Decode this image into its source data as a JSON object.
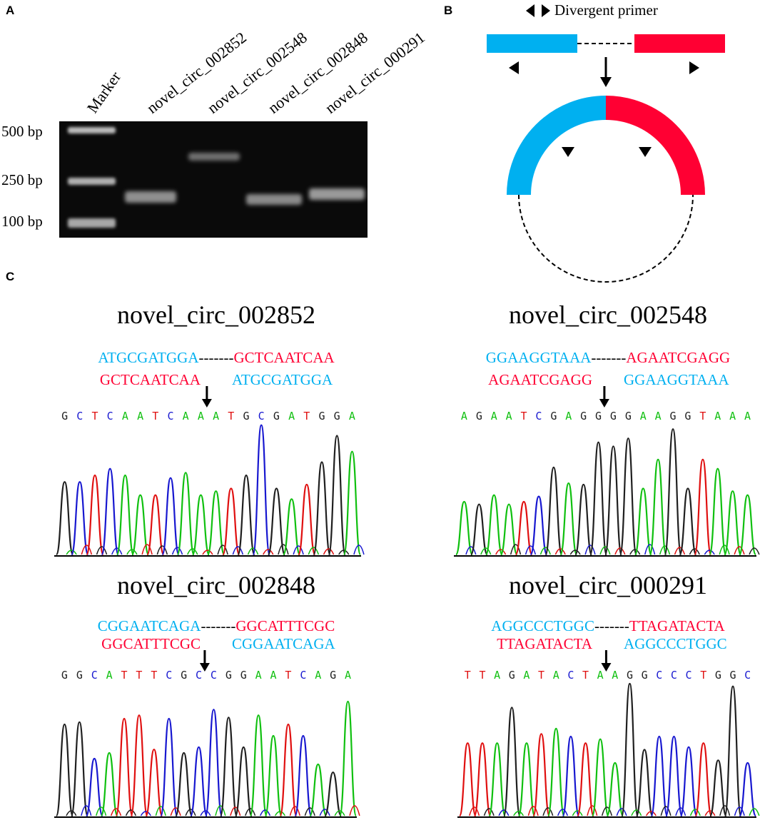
{
  "colors": {
    "exon_left": "#00b0f0",
    "exon_right": "#ff0033",
    "A": "#10c010",
    "C": "#1818d0",
    "G": "#202020",
    "T": "#e01010"
  },
  "panels": {
    "A": "A",
    "B": "B",
    "C": "C"
  },
  "gel": {
    "lanes": [
      "Marker",
      "novel_circ_002852",
      "novel_circ_002548",
      "novel_circ_002848",
      "novel_circ_000291"
    ],
    "size_labels": [
      "500 bp",
      "250 bp",
      "100 bp"
    ],
    "bands": [
      {
        "lane": "novel_circ_002852",
        "approx_bp": 180
      },
      {
        "lane": "novel_circ_002548",
        "approx_bp": 380
      },
      {
        "lane": "novel_circ_002848",
        "approx_bp": 170
      },
      {
        "lane": "novel_circ_000291",
        "approx_bp": 190
      }
    ]
  },
  "diagram": {
    "legend_label": "Divergent primer"
  },
  "traces": [
    {
      "title": "novel_circ_002852",
      "line1": {
        "left": "ATGCGATGGA",
        "dashes": "-------",
        "right": "GCTCAATCAA"
      },
      "line2": {
        "left": "GCTCAATCAA",
        "right": "ATGCGATGGA"
      },
      "bases": "GCTCAATCAAATGCGATGGA",
      "junction_index": 10
    },
    {
      "title": "novel_circ_002548",
      "line1": {
        "left": "GGAAGGTAAA",
        "dashes": "-------",
        "right": "AGAATCGAGG"
      },
      "line2": {
        "left": "AGAATCGAGG",
        "right": "GGAAGGTAAA"
      },
      "bases": "AGAATCGAGGGGAAGGTAAA",
      "junction_index": 10
    },
    {
      "title": "novel_circ_002848",
      "line1": {
        "left": "CGGAATCAGA",
        "dashes": "-------",
        "right": "GGCATTTCGC"
      },
      "line2": {
        "left": "GGCATTTCGC",
        "right": "CGGAATCAGA"
      },
      "bases": "GGCATTTCGCCGGAATCAGA",
      "junction_index": 10
    },
    {
      "title": "novel_circ_000291",
      "line1": {
        "left": "AGGCCCTGGC",
        "dashes": "-------",
        "right": "TTAGATACTA"
      },
      "line2": {
        "left": "TTAGATACTA",
        "right": "AGGCCCTGGC"
      },
      "bases": "TTAGATACTAAGGCCCTGGC",
      "junction_index": 10
    }
  ]
}
